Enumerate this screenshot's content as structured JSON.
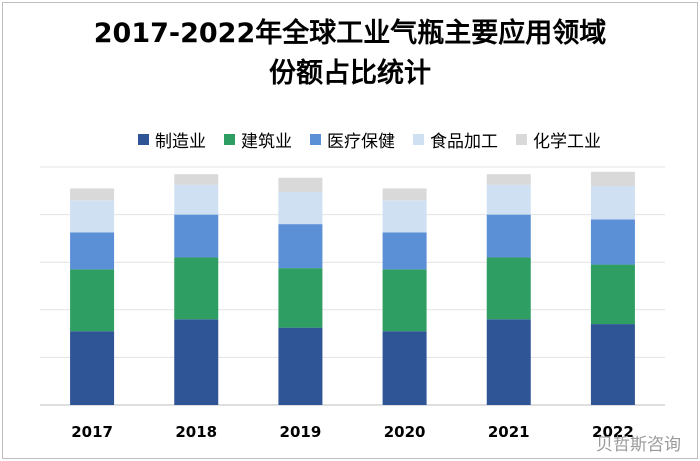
{
  "chart_data": {
    "type": "bar",
    "stacked": true,
    "title": [
      "2017-2022年全球工业气瓶主要应用领域",
      "份额占比统计"
    ],
    "categories": [
      "2017",
      "2018",
      "2019",
      "2020",
      "2021",
      "2022"
    ],
    "series": [
      {
        "name": "制造业",
        "color": "#2f5597",
        "values": [
          31,
          36,
          32.5,
          31,
          36,
          34
        ]
      },
      {
        "name": "建筑业",
        "color": "#2e9e62",
        "values": [
          26,
          26,
          25,
          26,
          26,
          25
        ]
      },
      {
        "name": "医疗保健",
        "color": "#5b8fd6",
        "values": [
          15.5,
          18,
          18.5,
          15.5,
          18,
          19
        ]
      },
      {
        "name": "食品加工",
        "color": "#cfe0f3",
        "values": [
          13.5,
          12.5,
          13.5,
          13.5,
          12.5,
          14
        ]
      },
      {
        "name": "化学工业",
        "color": "#d9d9d9",
        "values": [
          5,
          4.5,
          6,
          5,
          4.5,
          6
        ]
      }
    ],
    "ylim": [
      0,
      100
    ],
    "grid": true,
    "legend": "top",
    "xlabel": "",
    "ylabel": ""
  },
  "watermark": "贝哲斯咨询"
}
